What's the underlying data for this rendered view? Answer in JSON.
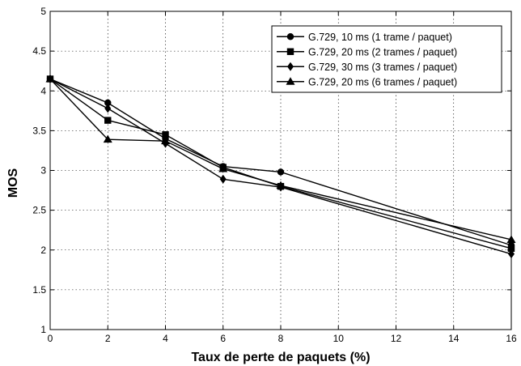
{
  "chart_data": {
    "type": "line",
    "xlabel": "Taux de perte de paquets (%)",
    "ylabel": "MOS",
    "xlim": [
      0,
      16
    ],
    "ylim": [
      1,
      5
    ],
    "x_ticks": [
      0,
      2,
      4,
      6,
      8,
      10,
      12,
      14,
      16
    ],
    "y_ticks": [
      1,
      1.5,
      2,
      2.5,
      3,
      3.5,
      4,
      4.5,
      5
    ],
    "x_tick_labels": [
      "0",
      "2",
      "4",
      "6",
      "8",
      "10",
      "12",
      "14",
      "16"
    ],
    "y_tick_labels": [
      "1",
      "1.5",
      "2",
      "2.5",
      "3",
      "3.5",
      "4",
      "4.5",
      "5"
    ],
    "grid": true,
    "legend_position": "top-right",
    "series": [
      {
        "name": "G.729, 10 ms (1 trame / paquet)",
        "marker": "circle",
        "x": [
          0,
          2,
          4,
          6,
          8,
          16
        ],
        "y": [
          4.15,
          3.85,
          3.4,
          3.05,
          2.98,
          2.06
        ]
      },
      {
        "name": "G.729, 20 ms (2 trames / paquet)",
        "marker": "square",
        "x": [
          0,
          2,
          4,
          6,
          8,
          16
        ],
        "y": [
          4.15,
          3.63,
          3.45,
          3.04,
          2.8,
          2.02
        ]
      },
      {
        "name": "G.729, 30 ms (3 trames / paquet)",
        "marker": "diamond",
        "x": [
          0,
          2,
          4,
          6,
          8,
          16
        ],
        "y": [
          4.15,
          3.78,
          3.34,
          2.89,
          2.79,
          1.95
        ]
      },
      {
        "name": "G.729, 20 ms (6 trames / paquet)",
        "marker": "triangle",
        "x": [
          0,
          2,
          4,
          6,
          8,
          16
        ],
        "y": [
          4.15,
          3.39,
          3.37,
          3.02,
          2.81,
          2.13
        ]
      }
    ]
  }
}
